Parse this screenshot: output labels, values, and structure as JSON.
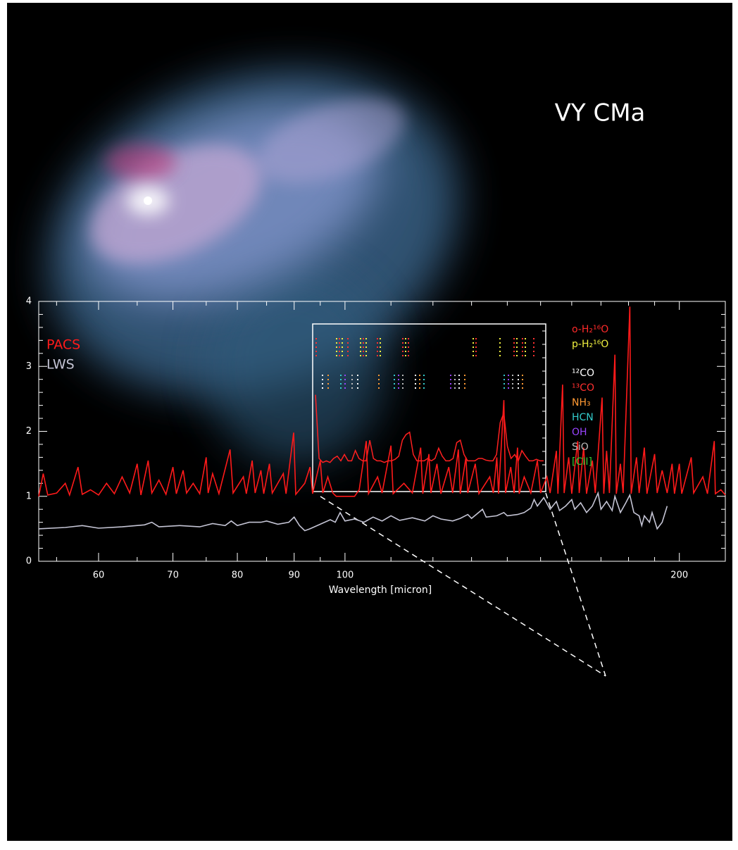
{
  "chart_data": [
    {
      "type": "line",
      "title": "VY CMa",
      "x_label": "Wavelength [micron]",
      "xscale": "log",
      "xlim": [
        53,
        220
      ],
      "ylim": [
        0,
        4
      ],
      "xticks": [
        60,
        70,
        80,
        90,
        100,
        200
      ],
      "yticks": [
        0,
        1,
        2,
        3,
        4
      ],
      "xminor_ticks": [
        55,
        65,
        75,
        85,
        95,
        110,
        120,
        130,
        140,
        150,
        160,
        170,
        180,
        190
      ],
      "yminor_ticks": [
        0.2,
        0.4,
        0.6,
        0.8,
        1.2,
        1.4,
        1.6,
        1.8,
        2.2,
        2.4,
        2.6,
        2.8,
        3.2,
        3.4,
        3.6,
        3.8
      ],
      "series": [
        {
          "name": "PACS",
          "color": "#ff1a1a",
          "x": [
            53,
            53.5,
            54,
            55,
            56,
            56.5,
            57.5,
            58,
            59,
            60,
            61,
            62,
            63,
            64,
            65,
            65.5,
            66.5,
            67,
            68,
            69,
            70,
            70.5,
            71.5,
            72,
            73,
            74,
            75,
            75.3,
            76,
            77,
            78.8,
            79.3,
            81,
            81.5,
            82.5,
            83,
            84,
            84.5,
            85.5,
            86,
            88,
            88.5,
            89.9,
            90.3,
            92,
            93,
            93.5,
            95,
            95.5,
            96.5,
            97.5,
            98.2,
            102,
            103,
            104.5,
            105,
            107,
            108,
            110,
            110.5,
            113,
            115,
            117,
            117.5,
            119,
            119.5,
            121,
            122,
            124,
            125,
            126.5,
            127,
            128.5,
            129,
            131,
            132,
            135,
            136,
            137,
            137.5,
            139,
            139.5,
            141,
            142,
            143,
            143.5,
            145,
            147,
            149,
            150,
            152,
            153,
            155,
            155.5,
            157,
            157.5,
            159,
            160,
            162,
            162.5,
            164,
            165,
            167,
            168,
            170.4,
            171,
            172,
            173,
            175,
            175.5,
            177,
            178,
            180.5,
            181,
            183,
            184,
            186,
            187,
            190,
            191,
            193,
            195,
            197,
            198,
            200,
            201,
            205,
            206,
            210,
            212,
            215,
            215.5,
            218,
            220
          ],
          "values": [
            1.0,
            1.35,
            1.02,
            1.05,
            1.2,
            1.02,
            1.45,
            1.03,
            1.1,
            1.02,
            1.2,
            1.04,
            1.3,
            1.05,
            1.5,
            1.02,
            1.55,
            1.05,
            1.25,
            1.03,
            1.45,
            1.04,
            1.4,
            1.05,
            1.2,
            1.04,
            1.6,
            1.05,
            1.35,
            1.04,
            1.72,
            1.05,
            1.3,
            1.04,
            1.55,
            1.05,
            1.4,
            1.04,
            1.5,
            1.05,
            1.35,
            1.04,
            1.98,
            1.03,
            1.2,
            1.45,
            1.04,
            1.55,
            1.05,
            1.3,
            1.05,
            1.0,
            1.0,
            1.1,
            1.85,
            1.04,
            1.3,
            1.05,
            1.78,
            1.04,
            1.2,
            1.05,
            1.75,
            1.04,
            1.65,
            1.05,
            1.5,
            1.04,
            1.45,
            1.05,
            1.72,
            1.04,
            1.6,
            1.05,
            1.5,
            1.04,
            1.3,
            1.05,
            1.6,
            1.04,
            2.48,
            1.05,
            1.45,
            1.05,
            1.75,
            1.04,
            1.3,
            1.05,
            1.55,
            1.05,
            1.3,
            1.05,
            1.7,
            1.04,
            2.72,
            1.05,
            1.6,
            1.04,
            1.85,
            1.05,
            1.75,
            1.04,
            1.55,
            1.05,
            2.52,
            1.04,
            1.7,
            1.05,
            3.18,
            1.04,
            1.5,
            1.05,
            3.92,
            1.04,
            1.6,
            1.05,
            1.75,
            1.04,
            1.65,
            1.05,
            1.4,
            1.05,
            1.5,
            1.04,
            1.5,
            1.04,
            1.6,
            1.05,
            1.3,
            1.04,
            1.85,
            1.04,
            1.1,
            1.02
          ]
        },
        {
          "name": "LWS",
          "color": "#c4c4d4",
          "x": [
            53,
            56,
            58,
            60,
            63,
            66,
            67,
            68,
            71,
            74,
            76,
            78,
            79,
            80,
            82,
            84,
            85,
            87,
            89,
            90,
            91,
            92,
            93,
            95,
            97,
            98,
            99,
            100,
            102,
            104,
            106,
            108,
            110,
            112,
            115,
            118,
            120,
            122,
            125,
            127,
            129,
            130,
            133,
            134,
            137,
            139,
            140,
            143,
            145,
            147,
            148,
            149,
            151,
            153,
            155,
            156,
            158,
            160,
            161,
            163,
            165,
            167,
            169,
            170,
            172,
            174,
            175,
            177,
            179,
            180.5,
            182,
            184,
            185,
            186,
            188,
            189,
            191,
            193,
            195
          ],
          "values": [
            0.5,
            0.52,
            0.55,
            0.51,
            0.53,
            0.56,
            0.6,
            0.53,
            0.55,
            0.53,
            0.58,
            0.55,
            0.62,
            0.55,
            0.6,
            0.6,
            0.62,
            0.57,
            0.6,
            0.68,
            0.55,
            0.47,
            0.5,
            0.57,
            0.64,
            0.6,
            0.75,
            0.62,
            0.65,
            0.6,
            0.68,
            0.62,
            0.7,
            0.63,
            0.67,
            0.62,
            0.7,
            0.65,
            0.62,
            0.66,
            0.72,
            0.66,
            0.8,
            0.68,
            0.7,
            0.75,
            0.7,
            0.72,
            0.75,
            0.82,
            0.95,
            0.85,
            0.98,
            0.8,
            0.92,
            0.78,
            0.85,
            0.95,
            0.8,
            0.9,
            0.75,
            0.85,
            1.05,
            0.8,
            0.92,
            0.78,
            1.0,
            0.75,
            0.9,
            1.02,
            0.75,
            0.7,
            0.55,
            0.7,
            0.6,
            0.75,
            0.5,
            0.6,
            0.85
          ]
        }
      ]
    },
    {
      "type": "line",
      "color": "#ff2020",
      "ylim": [
        0,
        1
      ],
      "values": [
        0.95,
        0.15,
        0.1,
        0.12,
        0.1,
        0.15,
        0.18,
        0.12,
        0.2,
        0.12,
        0.12,
        0.25,
        0.15,
        0.12,
        0.12,
        0.38,
        0.15,
        0.12,
        0.12,
        0.1,
        0.12,
        0.12,
        0.14,
        0.18,
        0.38,
        0.45,
        0.48,
        0.2,
        0.12,
        0.12,
        0.12,
        0.15,
        0.12,
        0.15,
        0.28,
        0.18,
        0.12,
        0.12,
        0.15,
        0.35,
        0.38,
        0.2,
        0.12,
        0.12,
        0.12,
        0.15,
        0.15,
        0.13,
        0.12,
        0.12,
        0.2,
        0.6,
        0.72,
        0.3,
        0.15,
        0.2,
        0.12,
        0.25,
        0.18,
        0.12,
        0.12,
        0.14,
        0.12,
        0.12
      ],
      "annotations": [
        {
          "text": "o-H₂¹⁶O",
          "color": "#ff2a2a"
        },
        {
          "text": "p-H₂¹⁶O",
          "color": "#f0f040"
        },
        {
          "text": "¹²CO",
          "color": "#ffffff"
        },
        {
          "text": "¹³CO",
          "color": "#ff3030"
        },
        {
          "text": "NH₃",
          "color": "#ff9933"
        },
        {
          "text": "HCN",
          "color": "#33cccc"
        },
        {
          "text": "OH",
          "color": "#9944ff"
        },
        {
          "text": "SiO",
          "color": "#bbbbbb"
        },
        {
          "text": "[CII]",
          "color": "#33cc33"
        }
      ]
    }
  ]
}
